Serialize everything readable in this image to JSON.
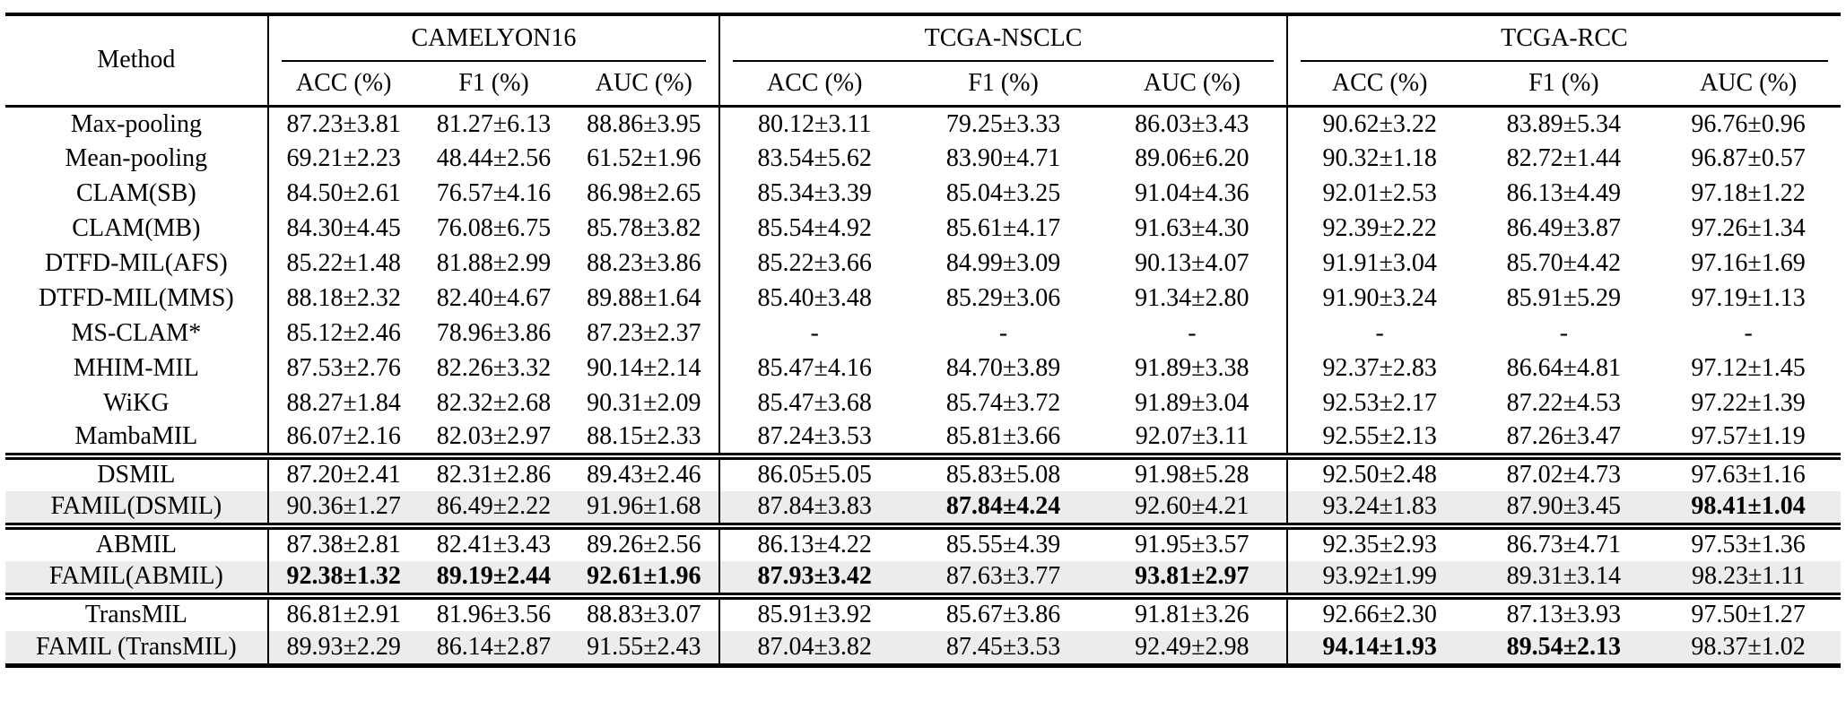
{
  "table": {
    "method_header": "Method",
    "highlight_color": "#ececec",
    "groups": [
      {
        "name": "CAMELYON16",
        "columns": [
          "ACC (%)",
          "F1 (%)",
          "AUC (%)"
        ]
      },
      {
        "name": "TCGA-NSCLC",
        "columns": [
          "ACC (%)",
          "F1 (%)",
          "AUC (%)"
        ]
      },
      {
        "name": "TCGA-RCC",
        "columns": [
          "ACC (%)",
          "F1 (%)",
          "AUC (%)"
        ]
      }
    ],
    "sections": [
      {
        "rows": [
          {
            "method": "Max-pooling",
            "highlight": false,
            "bold": [],
            "values": [
              "87.23±3.81",
              "81.27±6.13",
              "88.86±3.95",
              "80.12±3.11",
              "79.25±3.33",
              "86.03±3.43",
              "90.62±3.22",
              "83.89±5.34",
              "96.76±0.96"
            ]
          },
          {
            "method": "Mean-pooling",
            "highlight": false,
            "bold": [],
            "values": [
              "69.21±2.23",
              "48.44±2.56",
              "61.52±1.96",
              "83.54±5.62",
              "83.90±4.71",
              "89.06±6.20",
              "90.32±1.18",
              "82.72±1.44",
              "96.87±0.57"
            ]
          },
          {
            "method": "CLAM(SB)",
            "highlight": false,
            "bold": [],
            "values": [
              "84.50±2.61",
              "76.57±4.16",
              "86.98±2.65",
              "85.34±3.39",
              "85.04±3.25",
              "91.04±4.36",
              "92.01±2.53",
              "86.13±4.49",
              "97.18±1.22"
            ]
          },
          {
            "method": "CLAM(MB)",
            "highlight": false,
            "bold": [],
            "values": [
              "84.30±4.45",
              "76.08±6.75",
              "85.78±3.82",
              "85.54±4.92",
              "85.61±4.17",
              "91.63±4.30",
              "92.39±2.22",
              "86.49±3.87",
              "97.26±1.34"
            ]
          },
          {
            "method": "DTFD-MIL(AFS)",
            "highlight": false,
            "bold": [],
            "values": [
              "85.22±1.48",
              "81.88±2.99",
              "88.23±3.86",
              "85.22±3.66",
              "84.99±3.09",
              "90.13±4.07",
              "91.91±3.04",
              "85.70±4.42",
              "97.16±1.69"
            ]
          },
          {
            "method": "DTFD-MIL(MMS)",
            "highlight": false,
            "bold": [],
            "values": [
              "88.18±2.32",
              "82.40±4.67",
              "89.88±1.64",
              "85.40±3.48",
              "85.29±3.06",
              "91.34±2.80",
              "91.90±3.24",
              "85.91±5.29",
              "97.19±1.13"
            ]
          },
          {
            "method": "MS-CLAM*",
            "highlight": false,
            "bold": [],
            "values": [
              "85.12±2.46",
              "78.96±3.86",
              "87.23±2.37",
              "-",
              "-",
              "-",
              "-",
              "-",
              "-"
            ]
          },
          {
            "method": "MHIM-MIL",
            "highlight": false,
            "bold": [],
            "values": [
              "87.53±2.76",
              "82.26±3.32",
              "90.14±2.14",
              "85.47±4.16",
              "84.70±3.89",
              "91.89±3.38",
              "92.37±2.83",
              "86.64±4.81",
              "97.12±1.45"
            ]
          },
          {
            "method": "WiKG",
            "highlight": false,
            "bold": [],
            "values": [
              "88.27±1.84",
              "82.32±2.68",
              "90.31±2.09",
              "85.47±3.68",
              "85.74±3.72",
              "91.89±3.04",
              "92.53±2.17",
              "87.22±4.53",
              "97.22±1.39"
            ]
          },
          {
            "method": "MambaMIL",
            "highlight": false,
            "bold": [],
            "values": [
              "86.07±2.16",
              "82.03±2.97",
              "88.15±2.33",
              "87.24±3.53",
              "85.81±3.66",
              "92.07±3.11",
              "92.55±2.13",
              "87.26±3.47",
              "97.57±1.19"
            ]
          }
        ]
      },
      {
        "rows": [
          {
            "method": "DSMIL",
            "highlight": false,
            "bold": [],
            "values": [
              "87.20±2.41",
              "82.31±2.86",
              "89.43±2.46",
              "86.05±5.05",
              "85.83±5.08",
              "91.98±5.28",
              "92.50±2.48",
              "87.02±4.73",
              "97.63±1.16"
            ]
          },
          {
            "method": "FAMIL(DSMIL)",
            "highlight": true,
            "bold": [
              4,
              8
            ],
            "values": [
              "90.36±1.27",
              "86.49±2.22",
              "91.96±1.68",
              "87.84±3.83",
              "87.84±4.24",
              "92.60±4.21",
              "93.24±1.83",
              "87.90±3.45",
              "98.41±1.04"
            ]
          }
        ]
      },
      {
        "rows": [
          {
            "method": "ABMIL",
            "highlight": false,
            "bold": [],
            "values": [
              "87.38±2.81",
              "82.41±3.43",
              "89.26±2.56",
              "86.13±4.22",
              "85.55±4.39",
              "91.95±3.57",
              "92.35±2.93",
              "86.73±4.71",
              "97.53±1.36"
            ]
          },
          {
            "method": "FAMIL(ABMIL)",
            "highlight": true,
            "bold": [
              0,
              1,
              2,
              3,
              5
            ],
            "values": [
              "92.38±1.32",
              "89.19±2.44",
              "92.61±1.96",
              "87.93±3.42",
              "87.63±3.77",
              "93.81±2.97",
              "93.92±1.99",
              "89.31±3.14",
              "98.23±1.11"
            ]
          }
        ]
      },
      {
        "rows": [
          {
            "method": "TransMIL",
            "highlight": false,
            "bold": [],
            "values": [
              "86.81±2.91",
              "81.96±3.56",
              "88.83±3.07",
              "85.91±3.92",
              "85.67±3.86",
              "91.81±3.26",
              "92.66±2.30",
              "87.13±3.93",
              "97.50±1.27"
            ]
          },
          {
            "method": "FAMIL (TransMIL)",
            "highlight": true,
            "bold": [
              6,
              7
            ],
            "values": [
              "89.93±2.29",
              "86.14±2.87",
              "91.55±2.43",
              "87.04±3.82",
              "87.45±3.53",
              "92.49±2.98",
              "94.14±1.93",
              "89.54±2.13",
              "98.37±1.02"
            ]
          }
        ]
      }
    ]
  }
}
